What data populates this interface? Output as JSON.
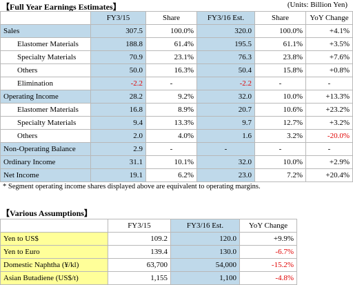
{
  "earnings": {
    "title": "【Full Year Earnings Estimates】",
    "units": "(Units:  Billion Yen)",
    "columns": [
      "FY3/15",
      "Share",
      "FY3/16 Est.",
      "Share",
      "YoY Change"
    ],
    "rows": [
      {
        "label": "Sales",
        "level": 0,
        "fy15": "307.5",
        "share15": "100.0%",
        "fy16": "320.0",
        "share16": "100.0%",
        "yoy": "+4.1%",
        "neg": []
      },
      {
        "label": "Elastomer Materials",
        "level": 1,
        "fy15": "188.8",
        "share15": "61.4%",
        "fy16": "195.5",
        "share16": "61.1%",
        "yoy": "+3.5%",
        "neg": []
      },
      {
        "label": "Specialty Materials",
        "level": 1,
        "fy15": "70.9",
        "share15": "23.1%",
        "fy16": "76.3",
        "share16": "23.8%",
        "yoy": "+7.6%",
        "neg": []
      },
      {
        "label": "Others",
        "level": 1,
        "fy15": "50.0",
        "share15": "16.3%",
        "fy16": "50.4",
        "share16": "15.8%",
        "yoy": "+0.8%",
        "neg": []
      },
      {
        "label": "Elimination",
        "level": 1,
        "fy15": "-2.2",
        "share15": "-",
        "fy16": "-2.2",
        "share16": "-",
        "yoy": "-",
        "neg": [
          "fy15",
          "fy16"
        ]
      },
      {
        "label": "Operating Income",
        "level": 0,
        "fy15": "28.2",
        "share15": "9.2%",
        "fy16": "32.0",
        "share16": "10.0%",
        "yoy": "+13.3%",
        "neg": []
      },
      {
        "label": "Elastomer Materials",
        "level": 1,
        "fy15": "16.8",
        "share15": "8.9%",
        "fy16": "20.7",
        "share16": "10.6%",
        "yoy": "+23.2%",
        "neg": []
      },
      {
        "label": "Specialty Materials",
        "level": 1,
        "fy15": "9.4",
        "share15": "13.3%",
        "fy16": "9.7",
        "share16": "12.7%",
        "yoy": "+3.2%",
        "neg": []
      },
      {
        "label": "Others",
        "level": 1,
        "fy15": "2.0",
        "share15": "4.0%",
        "fy16": "1.6",
        "share16": "3.2%",
        "yoy": "-20.0%",
        "neg": [
          "yoy"
        ]
      },
      {
        "label": "Non-Operating Balance",
        "level": 0,
        "fy15": "2.9",
        "share15": "-",
        "fy16": "-",
        "share16": "-",
        "yoy": "-",
        "neg": []
      },
      {
        "label": "Ordinary Income",
        "level": 0,
        "fy15": "31.1",
        "share15": "10.1%",
        "fy16": "32.0",
        "share16": "10.0%",
        "yoy": "+2.9%",
        "neg": []
      },
      {
        "label": "Net Income",
        "level": 0,
        "fy15": "19.1",
        "share15": "6.2%",
        "fy16": "23.0",
        "share16": "7.2%",
        "yoy": "+20.4%",
        "neg": []
      }
    ],
    "note": "* Segment operating income shares displayed above are equivalent to operating margins."
  },
  "assumptions": {
    "title": "【Various Assumptions】",
    "columns": [
      "FY3/15",
      "FY3/16 Est.",
      "YoY Change"
    ],
    "rows": [
      {
        "label": "Yen to US$",
        "fy15": "109.2",
        "fy16": "120.0",
        "yoy": "+9.9%",
        "neg": false
      },
      {
        "label": "Yen to Euro",
        "fy15": "139.4",
        "fy16": "130.0",
        "yoy": "-6.7%",
        "neg": true
      },
      {
        "label": "Domestic Naphtha (¥/kl)",
        "fy15": "63,700",
        "fy16": "54,000",
        "yoy": "-15.2%",
        "neg": true
      },
      {
        "label": "Asian Butadiene (US$/t)",
        "fy15": "1,155",
        "fy16": "1,100",
        "yoy": "-4.8%",
        "neg": true
      }
    ]
  },
  "colors": {
    "header_blue": "#bfd9ea",
    "label_yellow": "#ffff99",
    "negative": "#e00000"
  }
}
